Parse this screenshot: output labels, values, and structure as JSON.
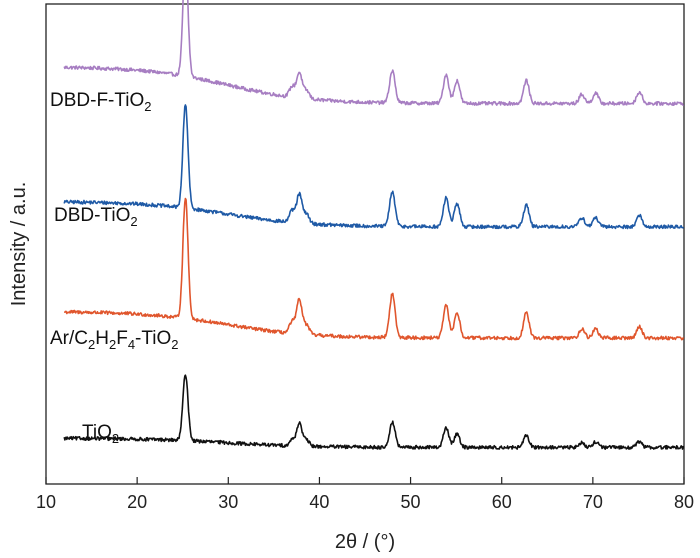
{
  "chart_data": {
    "type": "line",
    "title": "",
    "xlabel": "2θ / (°)",
    "ylabel": "Intensity / a.u.",
    "xlim": [
      10,
      80
    ],
    "xticks": [
      "10",
      "20",
      "30",
      "40",
      "50",
      "60",
      "70",
      "80"
    ],
    "yticks": [],
    "grid": false,
    "legend": "none (series labeled inline)",
    "series": [
      {
        "name": "DBD-F-TiO2",
        "label_parts": [
          [
            "DBD-F-TiO",
            ""
          ],
          [
            "2",
            "sub"
          ]
        ],
        "color": "#a77ec2",
        "offset": 3,
        "baseline": {
          "start": 0.42,
          "drop_center": 30,
          "drop_width": 4.5,
          "end": 0.1
        },
        "peaks": [
          [
            25.3,
            1.0
          ],
          [
            37.0,
            0.09
          ],
          [
            37.8,
            0.22
          ],
          [
            38.6,
            0.07
          ],
          [
            48.0,
            0.28
          ],
          [
            53.9,
            0.25
          ],
          [
            55.1,
            0.2
          ],
          [
            62.7,
            0.2
          ],
          [
            68.8,
            0.08
          ],
          [
            70.3,
            0.09
          ],
          [
            75.1,
            0.1
          ]
        ]
      },
      {
        "name": "DBD-TiO2",
        "label_parts": [
          [
            "DBD-TiO",
            ""
          ],
          [
            "2",
            "sub"
          ]
        ],
        "color": "#1f5aa6",
        "offset": 2,
        "baseline": {
          "start": 0.3,
          "drop_center": 30,
          "drop_width": 4.5,
          "end": 0.08
        },
        "peaks": [
          [
            25.3,
            0.9
          ],
          [
            37.0,
            0.1
          ],
          [
            37.8,
            0.25
          ],
          [
            38.6,
            0.08
          ],
          [
            48.0,
            0.3
          ],
          [
            53.9,
            0.25
          ],
          [
            55.1,
            0.2
          ],
          [
            62.7,
            0.19
          ],
          [
            68.8,
            0.08
          ],
          [
            70.3,
            0.08
          ],
          [
            75.1,
            0.1
          ]
        ]
      },
      {
        "name": "Ar/C2H2F4-TiO2",
        "label_parts": [
          [
            "Ar/C",
            ""
          ],
          [
            "2",
            "sub"
          ],
          [
            "H",
            ""
          ],
          [
            "2",
            "sub"
          ],
          [
            "F",
            ""
          ],
          [
            "4",
            "sub"
          ],
          [
            "-TiO",
            ""
          ],
          [
            "2",
            "sub"
          ]
        ],
        "color": "#e0562d",
        "offset": 1,
        "baseline": {
          "start": 0.3,
          "drop_center": 30,
          "drop_width": 4.5,
          "end": 0.07
        },
        "peaks": [
          [
            25.3,
            1.05
          ],
          [
            37.0,
            0.1
          ],
          [
            37.8,
            0.3
          ],
          [
            38.6,
            0.08
          ],
          [
            48.0,
            0.38
          ],
          [
            53.9,
            0.28
          ],
          [
            55.1,
            0.22
          ],
          [
            62.7,
            0.22
          ],
          [
            68.8,
            0.08
          ],
          [
            70.3,
            0.08
          ],
          [
            75.1,
            0.1
          ]
        ]
      },
      {
        "name": "TiO2",
        "label_parts": [
          [
            "TiO",
            ""
          ],
          [
            "2",
            "sub"
          ]
        ],
        "color": "#111111",
        "offset": 0,
        "baseline": {
          "start": 0.12,
          "drop_center": 30,
          "drop_width": 4.5,
          "end": 0.04
        },
        "peaks": [
          [
            25.3,
            0.58
          ],
          [
            37.0,
            0.05
          ],
          [
            37.8,
            0.2
          ],
          [
            38.6,
            0.05
          ],
          [
            48.0,
            0.22
          ],
          [
            53.9,
            0.17
          ],
          [
            55.1,
            0.12
          ],
          [
            62.7,
            0.1
          ],
          [
            68.8,
            0.04
          ],
          [
            70.3,
            0.05
          ],
          [
            75.1,
            0.05
          ]
        ]
      }
    ]
  }
}
